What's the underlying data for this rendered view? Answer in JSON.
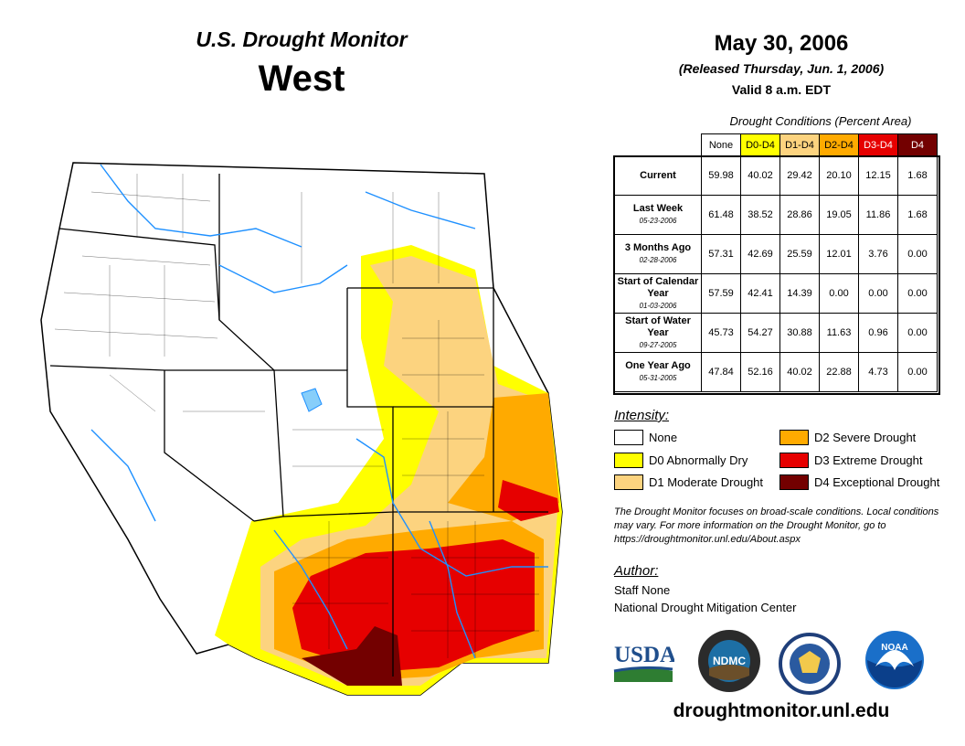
{
  "header": {
    "subtitle": "U.S. Drought Monitor",
    "region": "West",
    "date": "May 30, 2006",
    "released": "(Released Thursday, Jun. 1, 2006)",
    "valid": "Valid 8 a.m. EDT"
  },
  "table": {
    "caption": "Drought Conditions (Percent Area)",
    "columns": [
      {
        "label": "None",
        "color": "#ffffff",
        "text_color": "#000000"
      },
      {
        "label": "D0-D4",
        "color": "#ffff00",
        "text_color": "#000000"
      },
      {
        "label": "D1-D4",
        "color": "#fcd37f",
        "text_color": "#000000"
      },
      {
        "label": "D2-D4",
        "color": "#ffaa00",
        "text_color": "#000000"
      },
      {
        "label": "D3-D4",
        "color": "#e60000",
        "text_color": "#ffffff"
      },
      {
        "label": "D4",
        "color": "#730000",
        "text_color": "#ffffff"
      }
    ],
    "rows": [
      {
        "label": "Current",
        "date": "",
        "values": [
          "59.98",
          "40.02",
          "29.42",
          "20.10",
          "12.15",
          "1.68"
        ]
      },
      {
        "label": "Last Week",
        "date": "05-23-2006",
        "values": [
          "61.48",
          "38.52",
          "28.86",
          "19.05",
          "11.86",
          "1.68"
        ]
      },
      {
        "label": "3 Months Ago",
        "date": "02-28-2006",
        "values": [
          "57.31",
          "42.69",
          "25.59",
          "12.01",
          "3.76",
          "0.00"
        ]
      },
      {
        "label": "Start of Calendar Year",
        "date": "01-03-2006",
        "values": [
          "57.59",
          "42.41",
          "14.39",
          "0.00",
          "0.00",
          "0.00"
        ]
      },
      {
        "label": "Start of Water Year",
        "date": "09-27-2005",
        "values": [
          "45.73",
          "54.27",
          "30.88",
          "11.63",
          "0.96",
          "0.00"
        ]
      },
      {
        "label": "One Year Ago",
        "date": "05-31-2005",
        "values": [
          "47.84",
          "52.16",
          "40.02",
          "22.88",
          "4.73",
          "0.00"
        ]
      }
    ]
  },
  "intensity": {
    "title": "Intensity:",
    "items": [
      {
        "label": "None",
        "color": "#ffffff"
      },
      {
        "label": "D0 Abnormally Dry",
        "color": "#ffff00"
      },
      {
        "label": "D1 Moderate Drought",
        "color": "#fcd37f"
      },
      {
        "label": "D2 Severe Drought",
        "color": "#ffaa00"
      },
      {
        "label": "D3 Extreme Drought",
        "color": "#e60000"
      },
      {
        "label": "D4 Exceptional Drought",
        "color": "#730000"
      }
    ]
  },
  "note": "The Drought Monitor focuses on broad-scale conditions. Local conditions may vary. For more information on the Drought Monitor, go to https://droughtmonitor.unl.edu/About.aspx",
  "author": {
    "title": "Author:",
    "name": "Staff None",
    "org": "National Drought Mitigation Center"
  },
  "logos": {
    "usda": "USDA",
    "ndmc": "NDMC",
    "noaa": "NOAA"
  },
  "url": "droughtmonitor.unl.edu"
}
